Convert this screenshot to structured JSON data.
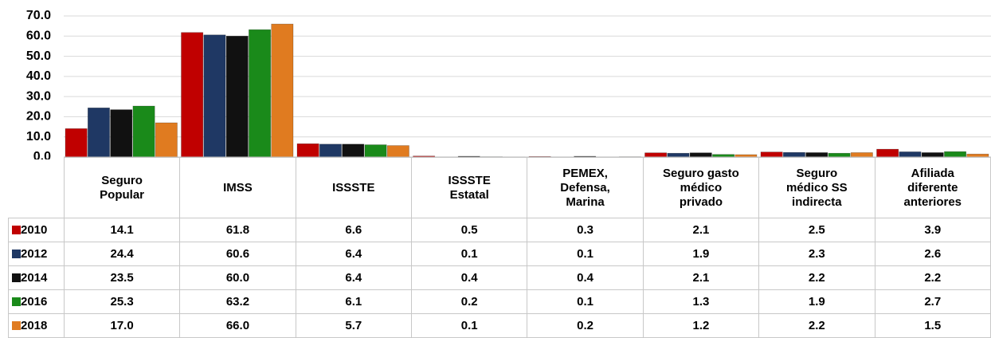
{
  "chart_data": {
    "type": "bar",
    "categories": [
      "Seguro Popular",
      "IMSS",
      "ISSSTE",
      "ISSSTE Estatal",
      "PEMEX, Defensa, Marina",
      "Seguro gasto médico privado",
      "Seguro médico SS indirecta",
      "Afiliada diferente anteriores"
    ],
    "series": [
      {
        "name": "2010",
        "color": "#c00000",
        "values": [
          14.1,
          61.8,
          6.6,
          0.5,
          0.3,
          2.1,
          2.5,
          3.9
        ],
        "value_labels": [
          "14.1",
          "61.8",
          "6.6",
          "0.5",
          "0.3",
          "2.1",
          "2.5",
          "3.9"
        ]
      },
      {
        "name": "2012",
        "color": "#1f3864",
        "values": [
          24.4,
          60.6,
          6.4,
          0.1,
          0.1,
          1.9,
          2.3,
          2.6
        ],
        "value_labels": [
          "24.4",
          "60.6",
          "6.4",
          "0.1",
          "0.1",
          "1.9",
          "2.3",
          "2.6"
        ]
      },
      {
        "name": "2014",
        "color": "#111111",
        "values": [
          23.5,
          60.0,
          6.4,
          0.4,
          0.4,
          2.1,
          2.2,
          2.2
        ],
        "value_labels": [
          "23.5",
          "60.0",
          "6.4",
          "0.4",
          "0.4",
          "2.1",
          "2.2",
          "2.2"
        ]
      },
      {
        "name": "2016",
        "color": "#1a8a1a",
        "values": [
          25.3,
          63.2,
          6.1,
          0.2,
          0.1,
          1.3,
          1.9,
          2.7
        ],
        "value_labels": [
          "25.3",
          "63.2",
          "6.1",
          "0.2",
          "0.1",
          "1.3",
          "1.9",
          "2.7"
        ]
      },
      {
        "name": "2018",
        "color": "#e07b20",
        "values": [
          17.0,
          66.0,
          5.7,
          0.1,
          0.2,
          1.2,
          2.2,
          1.5
        ],
        "value_labels": [
          "17.0",
          "66.0",
          "5.7",
          "0.1",
          "0.2",
          "1.2",
          "2.2",
          "1.5"
        ]
      }
    ],
    "ylim": [
      0,
      70
    ],
    "yticks": [
      {
        "value": 0,
        "label": "0.0"
      },
      {
        "value": 10,
        "label": "10.0"
      },
      {
        "value": 20,
        "label": "20.0"
      },
      {
        "value": 30,
        "label": "30.0"
      },
      {
        "value": 40,
        "label": "40.0"
      },
      {
        "value": 50,
        "label": "50.0"
      },
      {
        "value": 60,
        "label": "60.0"
      },
      {
        "value": 70,
        "label": "70.0"
      }
    ],
    "grid": true
  }
}
